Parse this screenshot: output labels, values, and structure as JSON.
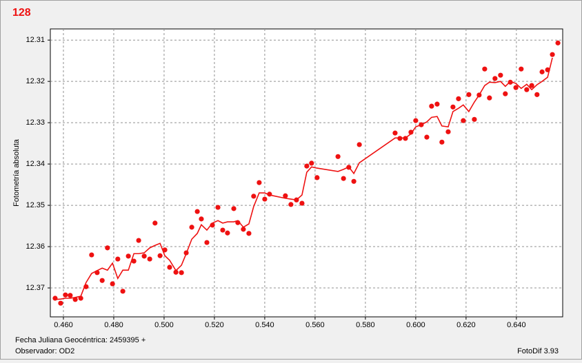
{
  "chart_data": {
    "type": "scatter",
    "title": "128",
    "ylabel": "Fotometría absoluta",
    "xlabel": "Fecha Juliana Geocéntrica: 2459395 +",
    "observer": "Observador: OD2",
    "software": "FotoDif 3.93",
    "xlim": [
      0.4548,
      0.6584
    ],
    "ylim": [
      12.377,
      12.3073
    ],
    "xticks": [
      {
        "value": 0.46,
        "label": "0.460"
      },
      {
        "value": 0.48,
        "label": "0.480"
      },
      {
        "value": 0.5,
        "label": "0.500"
      },
      {
        "value": 0.52,
        "label": "0.520"
      },
      {
        "value": 0.54,
        "label": "0.540"
      },
      {
        "value": 0.56,
        "label": "0.560"
      },
      {
        "value": 0.58,
        "label": "0.580"
      },
      {
        "value": 0.6,
        "label": "0.600"
      },
      {
        "value": 0.62,
        "label": "0.620"
      },
      {
        "value": 0.64,
        "label": "0.640"
      }
    ],
    "yticks": [
      12.31,
      12.32,
      12.33,
      12.34,
      12.35,
      12.36,
      12.37
    ],
    "grid": true,
    "x": [
      0.4567,
      0.4589,
      0.4608,
      0.4627,
      0.4647,
      0.4669,
      0.469,
      0.4712,
      0.4734,
      0.4754,
      0.4775,
      0.4795,
      0.4816,
      0.4836,
      0.4858,
      0.488,
      0.4899,
      0.4921,
      0.4943,
      0.4964,
      0.4984,
      0.5003,
      0.5022,
      0.5047,
      0.5069,
      0.5088,
      0.511,
      0.5132,
      0.5148,
      0.517,
      0.5192,
      0.5214,
      0.5233,
      0.5252,
      0.5277,
      0.5293,
      0.5315,
      0.5337,
      0.5356,
      0.5378,
      0.54,
      0.5419,
      0.5482,
      0.5504,
      0.5526,
      0.5548,
      0.5567,
      0.5586,
      0.5608,
      0.5691,
      0.5713,
      0.5734,
      0.5754,
      0.5776,
      0.5918,
      0.5937,
      0.5959,
      0.5981,
      0.6,
      0.6022,
      0.6044,
      0.6063,
      0.6085,
      0.6104,
      0.6129,
      0.6148,
      0.617,
      0.6189,
      0.6211,
      0.6233,
      0.6252,
      0.6274,
      0.6293,
      0.6315,
      0.6337,
      0.6356,
      0.6376,
      0.6398,
      0.6419,
      0.6441,
      0.6461,
      0.6482,
      0.6502,
      0.6524,
      0.6543,
      0.6565
    ],
    "series": [
      {
        "style": "markers",
        "color": "#ee1111",
        "values": [
          12.3725,
          12.3737,
          12.3717,
          12.3718,
          12.3728,
          12.3725,
          12.3697,
          12.362,
          12.3663,
          12.3682,
          12.3603,
          12.369,
          12.363,
          12.3708,
          12.3623,
          12.3635,
          12.3585,
          12.3623,
          12.363,
          12.3543,
          12.3622,
          12.3608,
          12.365,
          12.3662,
          12.3663,
          12.3615,
          12.3553,
          12.3515,
          12.3533,
          12.359,
          12.3548,
          12.3505,
          12.356,
          12.3567,
          12.3508,
          12.3542,
          12.3558,
          12.3568,
          12.3478,
          12.3445,
          12.3485,
          12.3473,
          12.3477,
          12.3498,
          12.3487,
          12.3495,
          12.3405,
          12.3398,
          12.3433,
          12.3382,
          12.3435,
          12.3408,
          12.3442,
          12.3353,
          12.3325,
          12.3338,
          12.3338,
          12.3323,
          12.3295,
          12.3305,
          12.3335,
          12.326,
          12.3255,
          12.3347,
          12.3322,
          12.3262,
          12.3242,
          12.3295,
          12.3232,
          12.3292,
          12.3233,
          12.317,
          12.324,
          12.3193,
          12.3185,
          12.323,
          12.3202,
          12.3215,
          12.317,
          12.322,
          12.321,
          12.3232,
          12.3177,
          12.3172,
          12.3135,
          12.3107
        ]
      },
      {
        "style": "line",
        "color": "#ee1111",
        "values": [
          12.3728,
          12.3727,
          12.3725,
          12.3725,
          12.3723,
          12.372,
          12.3687,
          12.3665,
          12.3658,
          12.3652,
          12.3657,
          12.364,
          12.3677,
          12.3657,
          12.3657,
          12.3617,
          12.3617,
          12.3615,
          12.3603,
          12.3597,
          12.3592,
          12.3622,
          12.3633,
          12.3658,
          12.3645,
          12.3617,
          12.3582,
          12.3568,
          12.3547,
          12.356,
          12.3543,
          12.3537,
          12.3543,
          12.354,
          12.354,
          12.3537,
          12.3553,
          12.3545,
          12.3503,
          12.347,
          12.347,
          12.3475,
          12.3483,
          12.3485,
          12.3487,
          12.3475,
          12.342,
          12.3407,
          12.341,
          12.3418,
          12.3413,
          12.3407,
          12.3423,
          12.3397,
          12.3337,
          12.3337,
          12.3337,
          12.3327,
          12.331,
          12.3305,
          12.3298,
          12.3287,
          12.3285,
          12.3308,
          12.331,
          12.3273,
          12.3265,
          12.3257,
          12.3273,
          12.325,
          12.3233,
          12.321,
          12.3202,
          12.3203,
          12.32,
          12.3212,
          12.32,
          12.3205,
          12.3217,
          12.3207,
          12.322,
          12.3208,
          12.32,
          12.319,
          12.3143,
          null
        ]
      }
    ]
  }
}
